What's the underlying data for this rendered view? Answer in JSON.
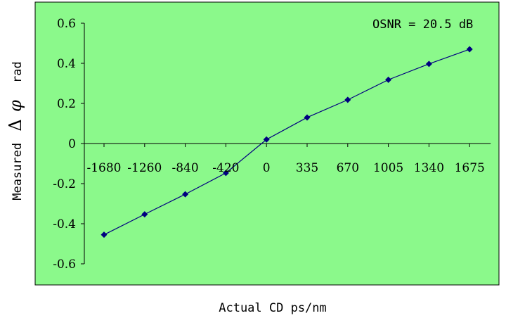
{
  "chart_data": {
    "type": "line",
    "annotation": "OSNR = 20.5 dB",
    "xlabel": "Actual CD  ps/nm",
    "ylabel": {
      "prefix": "Measured",
      "delta": "Δ",
      "phi": "φ",
      "suffix": "rad"
    },
    "ylim": [
      -0.6,
      0.6
    ],
    "yticks": [
      0.6,
      0.4,
      0.2,
      0,
      -0.2,
      -0.4,
      -0.6
    ],
    "ytick_labels": [
      "0.6",
      "0.4",
      "0.2",
      "0",
      "-0.2",
      "-0.4",
      "-0.6"
    ],
    "categories": [
      "-1680",
      "-1260",
      "-840",
      "-420",
      "0",
      "335",
      "670",
      "1005",
      "1340",
      "1675"
    ],
    "series": [
      {
        "values": [
          -0.455,
          -0.353,
          -0.253,
          -0.147,
          0.02,
          0.13,
          0.218,
          0.318,
          0.397,
          0.47
        ]
      }
    ],
    "grid": false,
    "legend": "none",
    "colors": {
      "plot_background": "#8BF98B",
      "line": "#000080",
      "marker": "#000080"
    }
  }
}
